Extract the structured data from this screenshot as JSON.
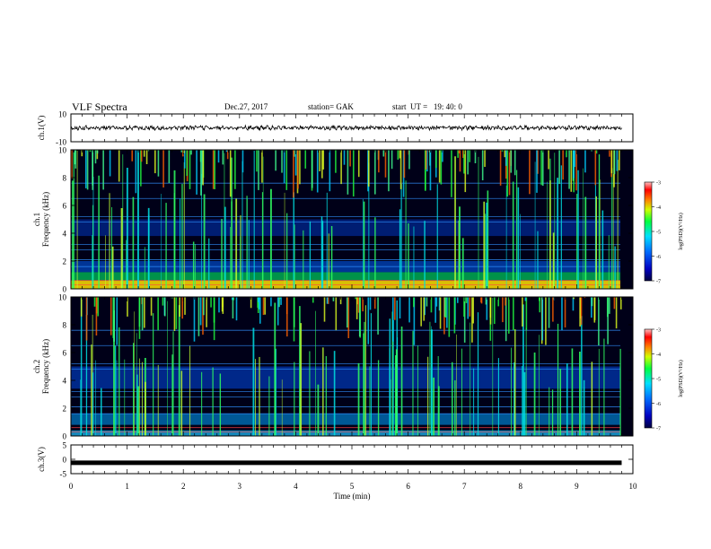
{
  "header": {
    "title": "VLF Spectra",
    "date": "Dec.27, 2017",
    "station": "station= GAK",
    "start": "start  UT =   19: 40: 0"
  },
  "chart_data": [
    {
      "type": "line",
      "panel": "ch1-waveform",
      "ylabel": "ch.1(V)",
      "ylim": [
        -10,
        10
      ],
      "yticks": [
        "10",
        "-10"
      ],
      "xlim": [
        0,
        10
      ],
      "series": [
        {
          "values_description_level": 0.0,
          "noise_amplitude": 1.5
        }
      ]
    },
    {
      "type": "heatmap",
      "panel": "ch1-spectrogram",
      "ylabel": "ch.1\nFrequency (kHz)",
      "ylim": [
        0,
        10
      ],
      "yticks": [
        "0",
        "2",
        "4",
        "6",
        "8",
        "10"
      ],
      "xlim": [
        0,
        10
      ],
      "colorbar": {
        "label": "log(PSD)(V²/Hz)",
        "range": [
          -7,
          -3
        ],
        "ticks": [
          "-3",
          "-4",
          "-5",
          "-6",
          "-7"
        ]
      }
    },
    {
      "type": "heatmap",
      "panel": "ch2-spectrogram",
      "ylabel": "ch.2\nFrequency (kHz)",
      "ylim": [
        0,
        10
      ],
      "yticks": [
        "0",
        "2",
        "4",
        "6",
        "8",
        "10"
      ],
      "xlim": [
        0,
        10
      ],
      "colorbar": {
        "label": "log(PSD)(V²/Hz)",
        "range": [
          -7,
          -3
        ],
        "ticks": [
          "-3",
          "-4",
          "-5",
          "-6",
          "-7"
        ]
      }
    },
    {
      "type": "line",
      "panel": "ch3-waveform",
      "ylabel": "ch.3(V)",
      "ylim": [
        -5,
        5
      ],
      "yticks": [
        "5",
        "0",
        "-5"
      ],
      "xlim": [
        0,
        10
      ],
      "series": [
        {
          "constant_value": -1.2
        }
      ]
    }
  ],
  "xaxis": {
    "label": "Time (min)",
    "ticks": [
      "0",
      "1",
      "2",
      "3",
      "4",
      "5",
      "6",
      "7",
      "8",
      "9",
      "10"
    ]
  }
}
